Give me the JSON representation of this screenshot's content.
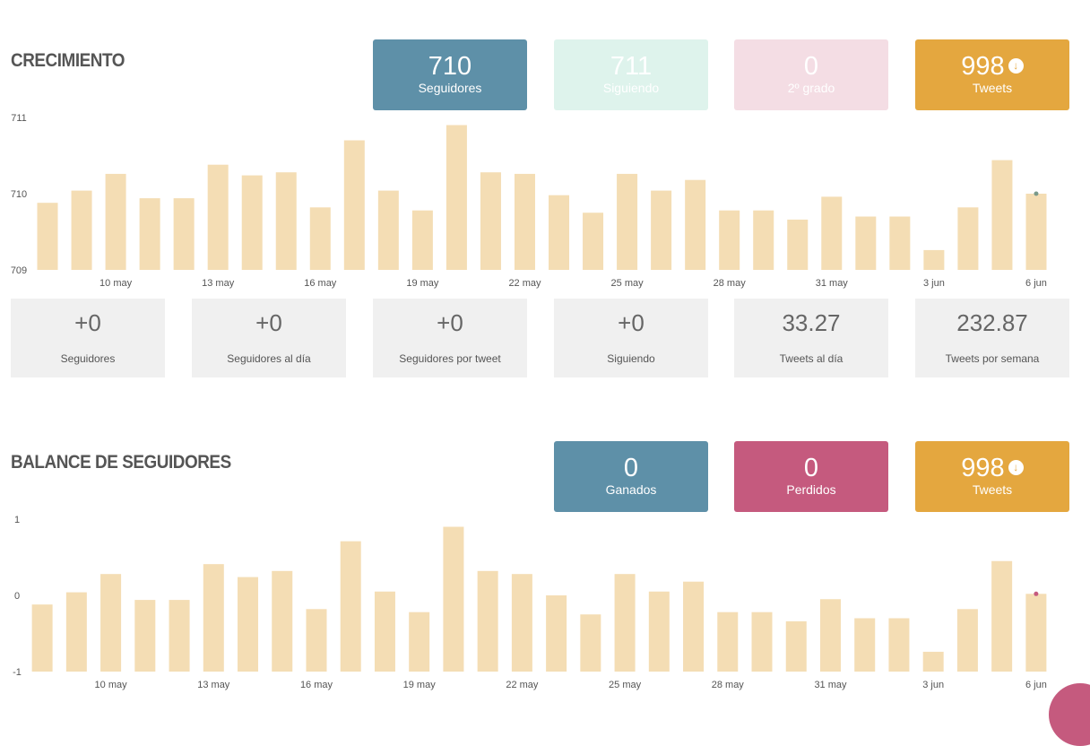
{
  "colors": {
    "bar": "#f4ddb4",
    "blue": "#5e90a8",
    "mint": "#def3ec",
    "pink": "#f4dde4",
    "orange": "#e4a73f",
    "magenta": "#c55a7e",
    "dot1": "#7a9a8a",
    "dot2": "#c55a7e"
  },
  "crecimiento": {
    "title": "CRECIMIENTO",
    "cards": [
      {
        "value": "710",
        "label": "Seguidores"
      },
      {
        "value": "711",
        "label": "Siguiendo"
      },
      {
        "value": "0",
        "label": "2º grado"
      },
      {
        "value": "998",
        "label": "Tweets",
        "icon": "arrow-down-circle-icon"
      }
    ]
  },
  "metrics": [
    {
      "value": "+0",
      "label": "Seguidores"
    },
    {
      "value": "+0",
      "label": "Seguidores al día"
    },
    {
      "value": "+0",
      "label": "Seguidores por tweet"
    },
    {
      "value": "+0",
      "label": "Siguiendo"
    },
    {
      "value": "33.27",
      "label": "Tweets al día"
    },
    {
      "value": "232.87",
      "label": "Tweets por semana"
    }
  ],
  "balance": {
    "title": "BALANCE DE SEGUIDORES",
    "cards": [
      {
        "value": "0",
        "label": "Ganados"
      },
      {
        "value": "0",
        "label": "Perdidos"
      },
      {
        "value": "998",
        "label": "Tweets",
        "icon": "arrow-down-circle-icon"
      }
    ]
  },
  "chart_data": [
    {
      "type": "bar",
      "ylim": [
        709,
        711
      ],
      "ytick_labels": [
        "711",
        "710",
        "709"
      ],
      "xtick_labels": [
        "10 may",
        "13 may",
        "16 may",
        "19 may",
        "22 may",
        "25 may",
        "28 may",
        "31 may",
        "3 jun",
        "6 jun"
      ],
      "values": [
        709.88,
        710.04,
        710.26,
        709.94,
        709.94,
        710.38,
        710.24,
        710.28,
        709.82,
        710.7,
        710.04,
        709.78,
        710.9,
        710.28,
        710.26,
        709.98,
        709.75,
        710.26,
        710.04,
        710.18,
        709.78,
        709.78,
        709.66,
        709.96,
        709.7,
        709.7,
        709.26,
        709.82,
        710.44,
        710.0
      ],
      "highlight_last": true
    },
    {
      "type": "bar",
      "ylim": [
        -1,
        1
      ],
      "ytick_labels": [
        "1",
        "0",
        "-1"
      ],
      "xtick_labels": [
        "10 may",
        "13 may",
        "16 may",
        "19 may",
        "22 may",
        "25 may",
        "28 may",
        "31 may",
        "3 jun",
        "6 jun"
      ],
      "values": [
        -0.12,
        0.04,
        0.28,
        -0.06,
        -0.06,
        0.41,
        0.24,
        0.32,
        -0.18,
        0.71,
        0.05,
        -0.22,
        0.9,
        0.32,
        0.28,
        0.0,
        -0.25,
        0.28,
        0.05,
        0.18,
        -0.22,
        -0.22,
        -0.34,
        -0.05,
        -0.3,
        -0.3,
        -0.74,
        -0.18,
        0.45,
        0.02
      ],
      "highlight_last": true
    }
  ]
}
